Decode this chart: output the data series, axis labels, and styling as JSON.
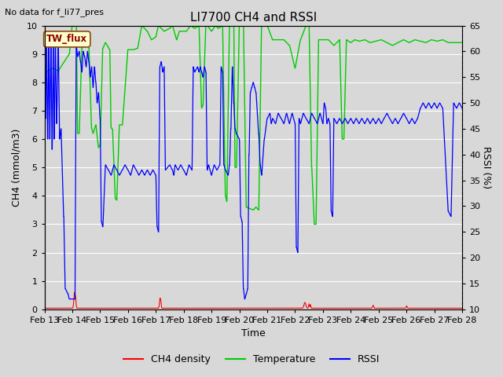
{
  "title": "LI7700 CH4 and RSSI",
  "top_left_text": "No data for f_li77_pres",
  "box_label": "TW_flux",
  "xlabel": "Time",
  "ylabel_left": "CH4 (mmol/m3)",
  "ylabel_right": "RSSI (%)",
  "ylim_left": [
    0.0,
    10.0
  ],
  "ylim_right": [
    10,
    65
  ],
  "yticks_left": [
    0.0,
    1.0,
    2.0,
    3.0,
    4.0,
    5.0,
    6.0,
    7.0,
    8.0,
    9.0,
    10.0
  ],
  "yticks_right": [
    10,
    15,
    20,
    25,
    30,
    35,
    40,
    45,
    50,
    55,
    60,
    65
  ],
  "xtick_labels": [
    "Feb 13",
    "Feb 14",
    "Feb 15",
    "Feb 16",
    "Feb 17",
    "Feb 18",
    "Feb 19",
    "Feb 20",
    "Feb 21",
    "Feb 22",
    "Feb 23",
    "Feb 24",
    "Feb 25",
    "Feb 26",
    "Feb 27",
    "Feb 28"
  ],
  "legend_labels": [
    "CH4 density",
    "Temperature",
    "RSSI"
  ],
  "legend_colors": [
    "#ff0000",
    "#00cc00",
    "#0000ff"
  ],
  "bg_color": "#d8d8d8",
  "grid_color": "#ffffff",
  "title_fontsize": 11,
  "axis_label_fontsize": 9,
  "tick_fontsize": 8
}
